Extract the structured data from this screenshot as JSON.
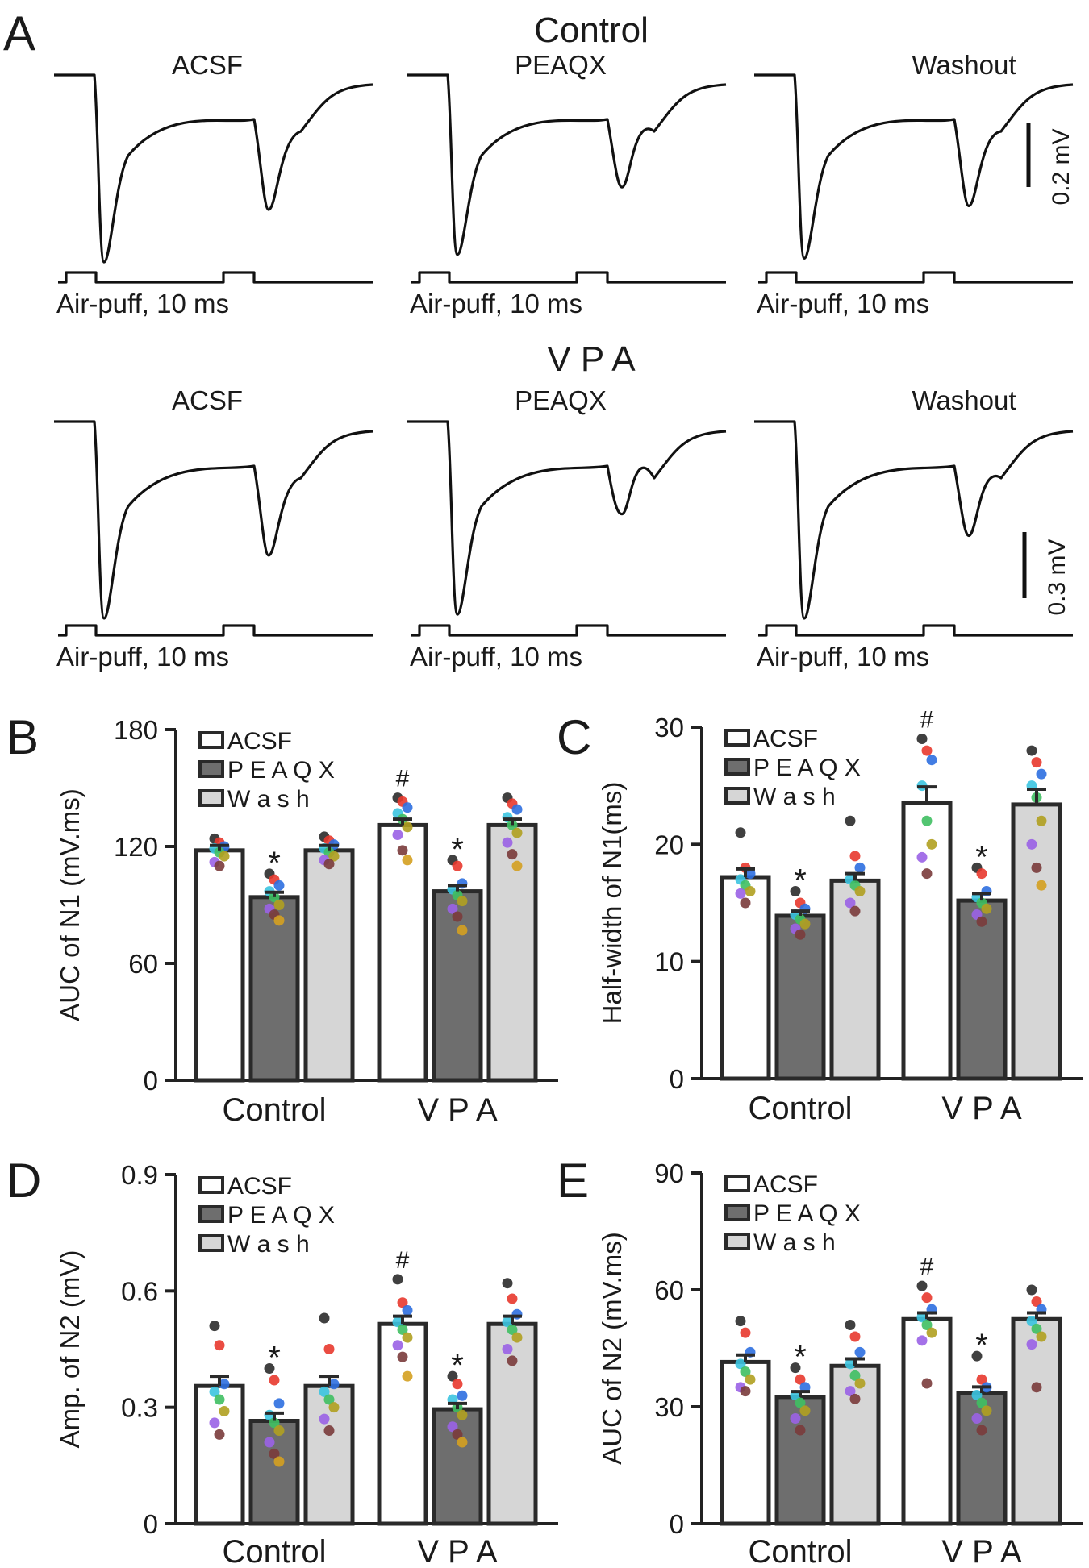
{
  "panel_a": {
    "letter": "A",
    "rows": [
      {
        "title": "Control",
        "scale_label": "0.2 mV",
        "traces": [
          {
            "label": "ACSF",
            "stim": "Air-puff, 10 ms",
            "n1_depth": 1.0,
            "n2_depth": 0.72
          },
          {
            "label": "PEAQX",
            "stim": "Air-puff, 10 ms",
            "n1_depth": 0.96,
            "n2_depth": 0.6
          },
          {
            "label": "Washout",
            "stim": "Air-puff, 10 ms",
            "n1_depth": 0.98,
            "n2_depth": 0.7
          }
        ]
      },
      {
        "title": "V P A",
        "scale_label": "0.3 mV",
        "traces": [
          {
            "label": "ACSF",
            "stim": "Air-puff, 10 ms",
            "n1_depth": 1.0,
            "n2_depth": 0.68
          },
          {
            "label": "PEAQX",
            "stim": "Air-puff, 10 ms",
            "n1_depth": 0.98,
            "n2_depth": 0.47
          },
          {
            "label": "Washout",
            "stim": "Air-puff, 10 ms",
            "n1_depth": 1.0,
            "n2_depth": 0.58
          }
        ]
      }
    ]
  },
  "legend": {
    "acsf": "ACSF",
    "peaqx": "P E A Q X",
    "wash": "W a s h"
  },
  "colors": {
    "acsf": "#ffffff",
    "peaqx": "#6e6e6e",
    "wash": "#d6d6d6",
    "axis": "#222222",
    "dots": [
      "#2b2b2b",
      "#e8392e",
      "#2e6fe0",
      "#3cc4e0",
      "#3fbf62",
      "#b0a020",
      "#9a62e6",
      "#7a3b3b",
      "#d4a020",
      "#5fd8c8"
    ]
  },
  "chart_data": [
    {
      "type": "bar",
      "letter": "B",
      "ylabel": "AUC of N1 (mV.ms)",
      "ylim": [
        0,
        180
      ],
      "yticks": [
        "0",
        "60",
        "120",
        "180"
      ],
      "tick_values": [
        0,
        60,
        120,
        180
      ],
      "categories": [
        "Control",
        "V P A"
      ],
      "series": [
        {
          "name": "ACSF",
          "values": [
            118,
            131
          ],
          "errors": [
            2.5,
            3
          ],
          "points": [
            [
              124,
              122,
              120,
              119,
              117,
              115,
              112,
              110
            ],
            [
              145,
              143,
              140,
              137,
              134,
              130,
              126,
              118,
              113
            ]
          ]
        },
        {
          "name": "PEAQX",
          "values": [
            94,
            97
          ],
          "errors": [
            2.5,
            3
          ],
          "points": [
            [
              106,
              103,
              100,
              97,
              94,
              90,
              88,
              85,
              82
            ],
            [
              113,
              110,
              101,
              98,
              95,
              92,
              88,
              84,
              77
            ]
          ]
        },
        {
          "name": "Wash",
          "values": [
            118,
            131
          ],
          "errors": [
            2.5,
            3
          ],
          "points": [
            [
              125,
              123,
              121,
              119,
              117,
              115,
              113,
              111
            ],
            [
              145,
              142,
              139,
              135,
              131,
              127,
              122,
              116,
              110
            ]
          ]
        }
      ],
      "annotations": [
        {
          "text": "#",
          "group": 1,
          "series": 0
        },
        {
          "text": "*",
          "group": 0,
          "series": 1
        },
        {
          "text": "*",
          "group": 1,
          "series": 1
        }
      ]
    },
    {
      "type": "bar",
      "letter": "C",
      "ylabel": "Half-width of N1(ms)",
      "ylim": [
        0,
        30
      ],
      "yticks": [
        "0",
        "10",
        "20",
        "30"
      ],
      "tick_values": [
        0,
        10,
        20,
        30
      ],
      "categories": [
        "Control",
        "V P A"
      ],
      "series": [
        {
          "name": "ACSF",
          "values": [
            17.2,
            23.5
          ],
          "errors": [
            0.7,
            1.4
          ],
          "points": [
            [
              21,
              18,
              17.5,
              17,
              16.5,
              16,
              15.8,
              15
            ],
            [
              29,
              28,
              27.2,
              25,
              22,
              20,
              18.9,
              17.5
            ]
          ]
        },
        {
          "name": "PEAQX",
          "values": [
            13.9,
            15.2
          ],
          "errors": [
            0.4,
            0.6
          ],
          "points": [
            [
              16,
              15,
              14.5,
              14,
              13.6,
              13.2,
              12.8,
              12.3
            ],
            [
              18,
              17.5,
              16,
              15.5,
              15,
              14.5,
              14,
              13.4
            ]
          ]
        },
        {
          "name": "Wash",
          "values": [
            16.9,
            23.4
          ],
          "errors": [
            0.6,
            1.3
          ],
          "points": [
            [
              22,
              19,
              18,
              17,
              16.5,
              16,
              15,
              14.3
            ],
            [
              28,
              27,
              26,
              25,
              24,
              22,
              20,
              18,
              16.5
            ]
          ]
        }
      ],
      "annotations": [
        {
          "text": "#",
          "group": 1,
          "series": 0
        },
        {
          "text": "*",
          "group": 0,
          "series": 1
        },
        {
          "text": "*",
          "group": 1,
          "series": 1
        }
      ]
    },
    {
      "type": "bar",
      "letter": "D",
      "ylabel": "Amp. of N2 (mV)",
      "ylim": [
        0,
        0.9
      ],
      "yticks": [
        "0",
        "0.3",
        "0.6",
        "0.9"
      ],
      "tick_values": [
        0,
        0.3,
        0.6,
        0.9
      ],
      "categories": [
        "Control",
        "V P A"
      ],
      "series": [
        {
          "name": "ACSF",
          "values": [
            0.355,
            0.515
          ],
          "errors": [
            0.025,
            0.02
          ],
          "points": [
            [
              0.51,
              0.46,
              0.36,
              0.34,
              0.32,
              0.29,
              0.26,
              0.23
            ],
            [
              0.63,
              0.57,
              0.55,
              0.52,
              0.5,
              0.48,
              0.46,
              0.43,
              0.38
            ]
          ]
        },
        {
          "name": "PEAQX",
          "values": [
            0.265,
            0.295
          ],
          "errors": [
            0.02,
            0.015
          ],
          "points": [
            [
              0.4,
              0.37,
              0.31,
              0.28,
              0.26,
              0.24,
              0.21,
              0.18,
              0.16
            ],
            [
              0.38,
              0.36,
              0.33,
              0.32,
              0.3,
              0.28,
              0.25,
              0.23,
              0.21
            ]
          ]
        },
        {
          "name": "Wash",
          "values": [
            0.355,
            0.515
          ],
          "errors": [
            0.025,
            0.02
          ],
          "points": [
            [
              0.53,
              0.45,
              0.36,
              0.34,
              0.32,
              0.3,
              0.27,
              0.24
            ],
            [
              0.62,
              0.58,
              0.54,
              0.52,
              0.5,
              0.48,
              0.45,
              0.42
            ]
          ]
        }
      ],
      "annotations": [
        {
          "text": "#",
          "group": 1,
          "series": 0
        },
        {
          "text": "*",
          "group": 0,
          "series": 1
        },
        {
          "text": "*",
          "group": 1,
          "series": 1
        }
      ]
    },
    {
      "type": "bar",
      "letter": "E",
      "ylabel": "AUC of N2 (mV.ms)",
      "ylim": [
        0,
        90
      ],
      "yticks": [
        "0",
        "30",
        "60",
        "90"
      ],
      "tick_values": [
        0,
        30,
        60,
        90
      ],
      "categories": [
        "Control",
        "V P A"
      ],
      "series": [
        {
          "name": "ACSF",
          "values": [
            41.5,
            52.5
          ],
          "errors": [
            1.8,
            1.6
          ],
          "points": [
            [
              52,
              49,
              44,
              41,
              39,
              37,
              35,
              34
            ],
            [
              61,
              58,
              55,
              53,
              51,
              49,
              47,
              36
            ]
          ]
        },
        {
          "name": "PEAQX",
          "values": [
            32.5,
            33.5
          ],
          "errors": [
            1.4,
            1.6
          ],
          "points": [
            [
              40,
              37,
              35,
              33,
              31,
              29,
              27,
              24
            ],
            [
              43,
              37,
              35,
              33,
              31,
              29,
              27,
              24
            ]
          ]
        },
        {
          "name": "Wash",
          "values": [
            40.5,
            52.5
          ],
          "errors": [
            1.8,
            1.6
          ],
          "points": [
            [
              51,
              48,
              44,
              41,
              38,
              36,
              34,
              32
            ],
            [
              60,
              57,
              55,
              52,
              50,
              48,
              46,
              35
            ]
          ]
        }
      ],
      "annotations": [
        {
          "text": "#",
          "group": 1,
          "series": 0
        },
        {
          "text": "*",
          "group": 0,
          "series": 1
        },
        {
          "text": "*",
          "group": 1,
          "series": 1
        }
      ]
    }
  ]
}
